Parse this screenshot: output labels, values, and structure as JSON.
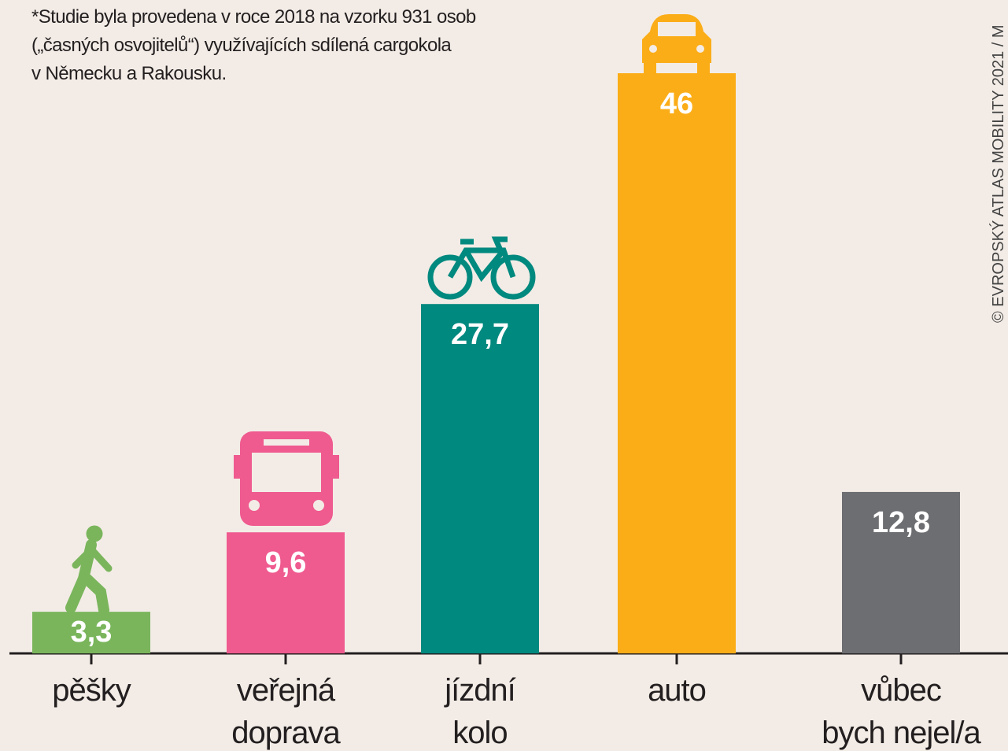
{
  "chart_data": {
    "type": "bar",
    "note": "*Studie byla provedena v roce 2018 na vzorku 931 osob\n(„časných osvojitelů“) využívajících sdílená cargokola\nv Německu a Rakousku.",
    "credit": "© EVROPSKÝ ATLAS MOBILITY 2021 / M",
    "categories": [
      "pěšky",
      "veřejná\ndoprava",
      "jízdní\nkolo",
      "auto",
      "vůbec\nbych nejel/a"
    ],
    "values": [
      3.3,
      9.6,
      27.7,
      46,
      12.8
    ],
    "value_labels": [
      "3,3",
      "9,6",
      "27,7",
      "46",
      "12,8"
    ],
    "colors": [
      "#7ab55c",
      "#ef5a8f",
      "#00897f",
      "#fbad18",
      "#6d6e71"
    ],
    "ylim": [
      0,
      46
    ]
  }
}
